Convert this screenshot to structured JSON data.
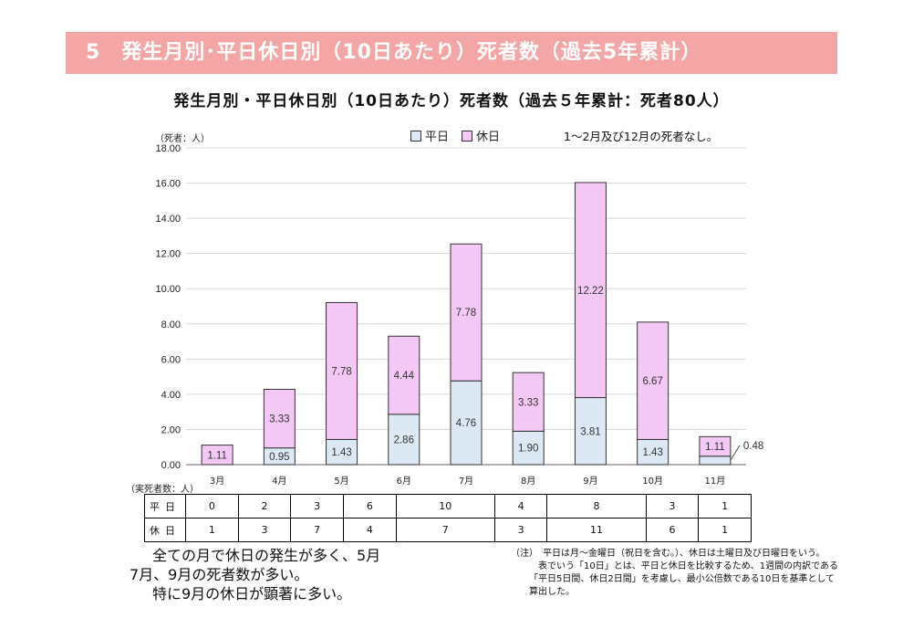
{
  "banner": {
    "title": "5　発生月別･平日休日別（10日あたり）死者数（過去5年累計）"
  },
  "chart_title": "発生月別・平日休日別（10日あたり）死者数（過去５年累計：死者80人）",
  "unit_label": "（死者：人）",
  "legend": {
    "weekday": "平日",
    "holiday": "休日"
  },
  "note_top": "1～2月及び12月の死者なし。",
  "colors": {
    "weekday": "#dce9f4",
    "holiday": "#f4c8f4",
    "banner": "#f4a6a6"
  },
  "chart_data": {
    "type": "bar",
    "stacked": true,
    "categories": [
      "3月",
      "4月",
      "5月",
      "6月",
      "7月",
      "8月",
      "9月",
      "10月",
      "11月"
    ],
    "series": [
      {
        "name": "平日",
        "values": [
          0,
          0.95,
          1.43,
          2.86,
          4.76,
          1.9,
          3.81,
          1.43,
          0.48
        ]
      },
      {
        "name": "休日",
        "values": [
          1.11,
          3.33,
          7.78,
          4.44,
          7.78,
          3.33,
          12.22,
          6.67,
          1.11
        ]
      }
    ],
    "y_ticks": [
      "0.00",
      "2.00",
      "4.00",
      "6.00",
      "8.00",
      "10.00",
      "12.00",
      "14.00",
      "16.00",
      "18.00"
    ],
    "ylim": [
      0,
      18
    ],
    "data_labels": {
      "weekday": [
        "",
        "0.95",
        "1.43",
        "2.86",
        "4.76",
        "1.90",
        "3.81",
        "1.43",
        "0.48"
      ],
      "holiday": [
        "1.11",
        "3.33",
        "7.78",
        "4.44",
        "7.78",
        "3.33",
        "12.22",
        "6.67",
        "1.11"
      ]
    },
    "grid": true
  },
  "table": {
    "label": "（実死者数：人）",
    "rows": [
      {
        "label": "平日",
        "values": [
          "0",
          "2",
          "3",
          "6",
          "10",
          "4",
          "8",
          "3",
          "1"
        ]
      },
      {
        "label": "休日",
        "values": [
          "1",
          "3",
          "7",
          "4",
          "7",
          "3",
          "11",
          "6",
          "1"
        ]
      }
    ]
  },
  "summary": [
    "全ての月で休日の発生が多く、5月",
    "7月、9月の死者数が多い。",
    "特に9月の休日が顕著に多い。"
  ],
  "footnote": {
    "line1": "（注）　平日は月～金曜日（祝日を含む。）、休日は土曜日及び日曜日をいう。",
    "line2": "表でいう「10日」とは、平日と休日を比較するため、1週間の内訳である",
    "line3": "「平日5日間、休日2日間」を考慮し、最小公倍数である10日を基準として",
    "line4": "算出した。"
  }
}
